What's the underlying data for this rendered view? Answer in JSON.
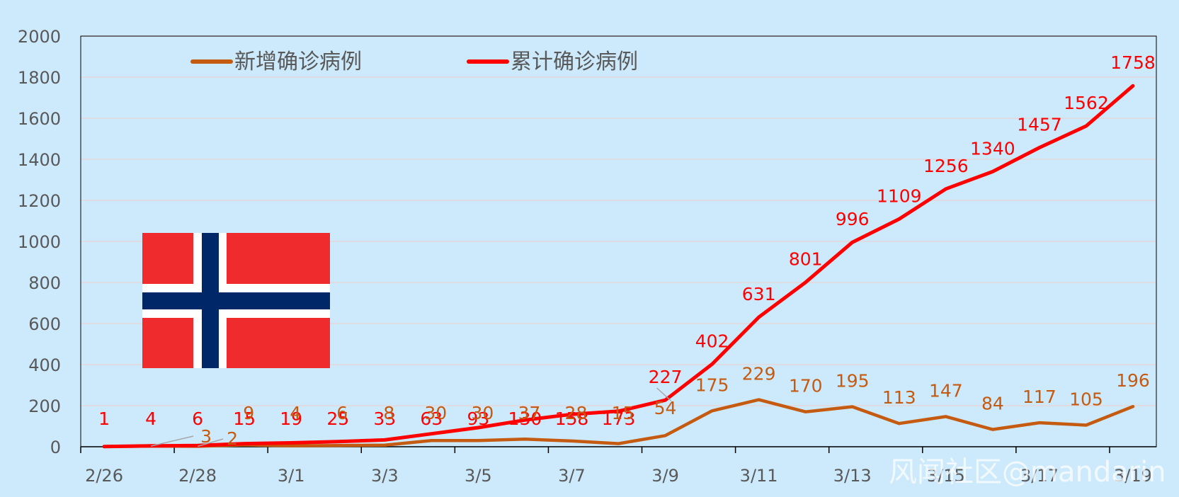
{
  "chart_data": {
    "type": "line",
    "title": "",
    "xlabel": "",
    "ylabel": "",
    "x": [
      "2/26",
      "2/27",
      "2/28",
      "2/29",
      "3/1",
      "3/2",
      "3/3",
      "3/4",
      "3/5",
      "3/6",
      "3/7",
      "3/8",
      "3/9",
      "3/10",
      "3/11",
      "3/12",
      "3/13",
      "3/14",
      "3/15",
      "3/16",
      "3/17",
      "3/18",
      "3/19"
    ],
    "x_tick_labels": [
      "2/26",
      "2/28",
      "3/1",
      "3/3",
      "3/5",
      "3/7",
      "3/9",
      "3/11",
      "3/13",
      "3/15",
      "3/17",
      "3/19"
    ],
    "ylim": [
      0,
      2000
    ],
    "y_ticks": [
      0,
      200,
      400,
      600,
      800,
      1000,
      1200,
      1400,
      1600,
      1800,
      2000
    ],
    "grid": true,
    "legend_position": "top",
    "series": [
      {
        "name": "新增确诊病例",
        "color": "#c55a11",
        "values": [
          1,
          3,
          2,
          9,
          4,
          6,
          8,
          30,
          30,
          37,
          28,
          15,
          54,
          175,
          229,
          170,
          195,
          113,
          147,
          84,
          117,
          105,
          196
        ],
        "labels": [
          "",
          "3",
          "2",
          "9",
          "4",
          "6",
          "8",
          "30",
          "30",
          "37",
          "28",
          "15",
          "54",
          "175",
          "229",
          "170",
          "195",
          "113",
          "147",
          "84",
          "117",
          "105",
          "196"
        ]
      },
      {
        "name": "累计确诊病例",
        "color": "#ff0000",
        "values": [
          1,
          4,
          6,
          15,
          19,
          25,
          33,
          63,
          93,
          130,
          158,
          173,
          227,
          402,
          631,
          801,
          996,
          1109,
          1256,
          1340,
          1457,
          1562,
          1758
        ],
        "labels": [
          "1",
          "4",
          "6",
          "15",
          "19",
          "25",
          "33",
          "63",
          "93",
          "130",
          "158",
          "173",
          "227",
          "402",
          "631",
          "801",
          "996",
          "1109",
          "1256",
          "1340",
          "1457",
          "1562",
          "1758"
        ]
      }
    ]
  },
  "flag": {
    "name": "norway-flag",
    "colors": {
      "red": "#ef2b2d",
      "white": "#ffffff",
      "blue": "#002868"
    }
  },
  "watermark": "风闻社区@mandarin"
}
